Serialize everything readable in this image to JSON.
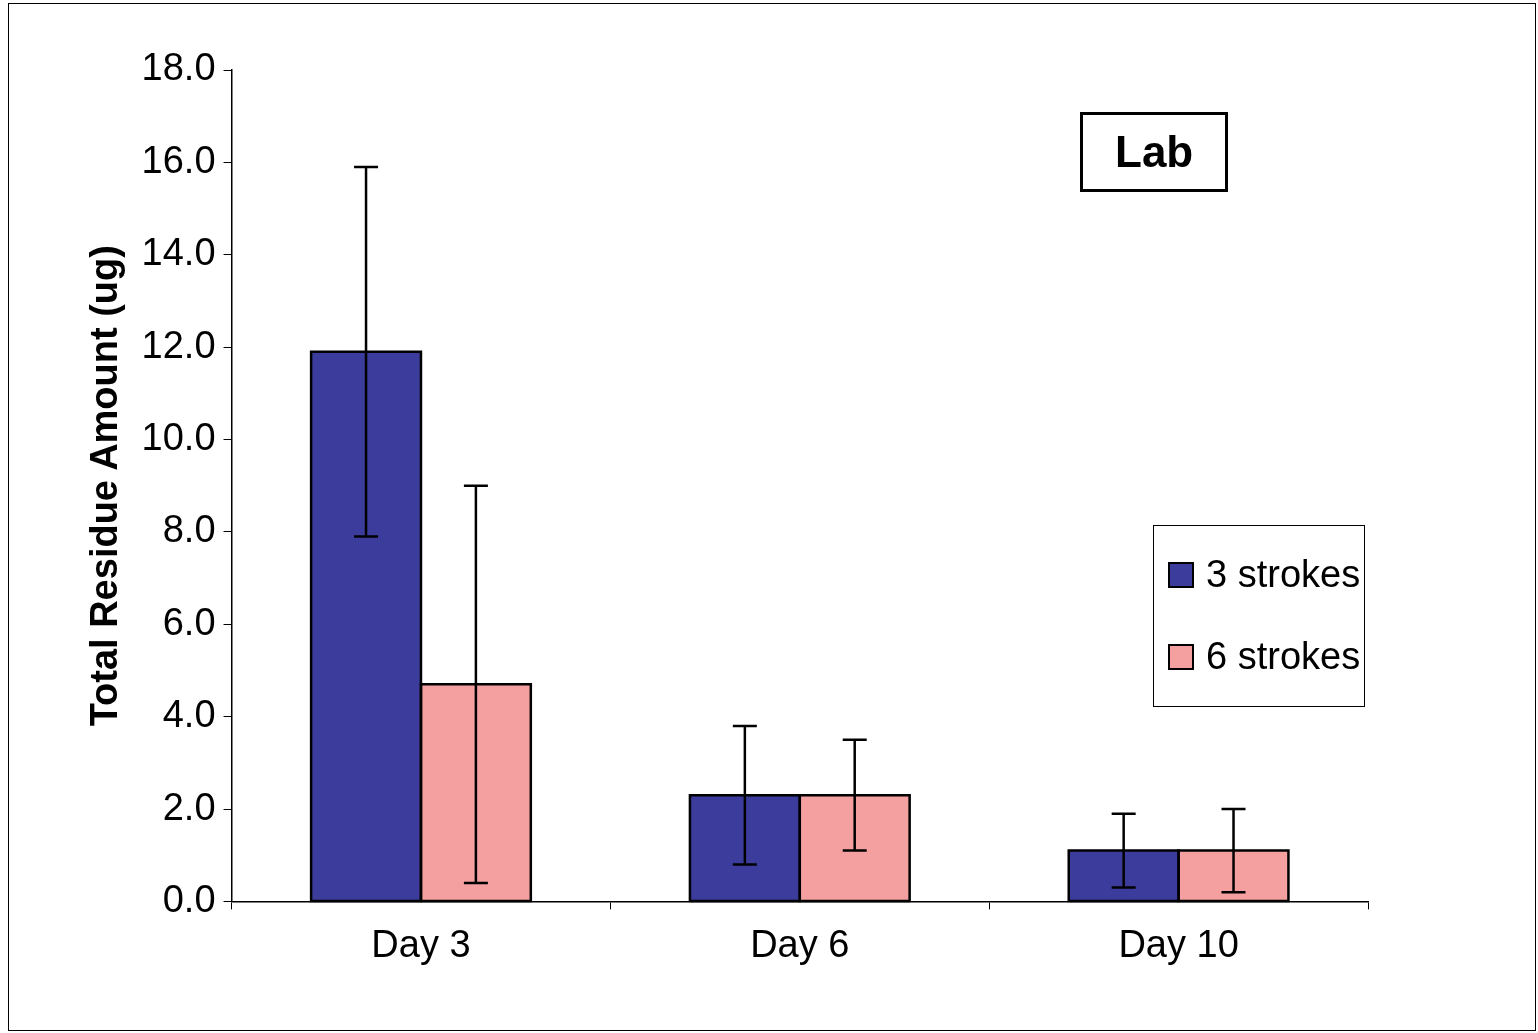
{
  "chart_data": {
    "type": "bar",
    "ylabel": "Total Residue Amount (ug)",
    "categories": [
      "Day 3",
      "Day 6",
      "Day 10"
    ],
    "series": [
      {
        "name": "3 strokes",
        "color": "#3c3c9c",
        "values": [
          11.9,
          2.3,
          1.1
        ],
        "errors": [
          4.0,
          1.5,
          0.8
        ]
      },
      {
        "name": "6 strokes",
        "color": "#f4a0a0",
        "values": [
          4.7,
          2.3,
          1.1
        ],
        "errors": [
          4.3,
          1.2,
          0.9
        ]
      }
    ],
    "ylim": [
      0,
      18
    ],
    "yticks": [
      {
        "value": 0,
        "label": "0.0"
      },
      {
        "value": 2,
        "label": "2.0"
      },
      {
        "value": 4,
        "label": "4.0"
      },
      {
        "value": 6,
        "label": "6.0"
      },
      {
        "value": 8,
        "label": "8.0"
      },
      {
        "value": 10,
        "label": "10.0"
      },
      {
        "value": 12,
        "label": "12.0"
      },
      {
        "value": 14,
        "label": "14.0"
      },
      {
        "value": 16,
        "label": "16.0"
      },
      {
        "value": 18,
        "label": "18.0"
      }
    ],
    "annotations": [
      "Lab"
    ],
    "legend": "right",
    "grid": false
  }
}
